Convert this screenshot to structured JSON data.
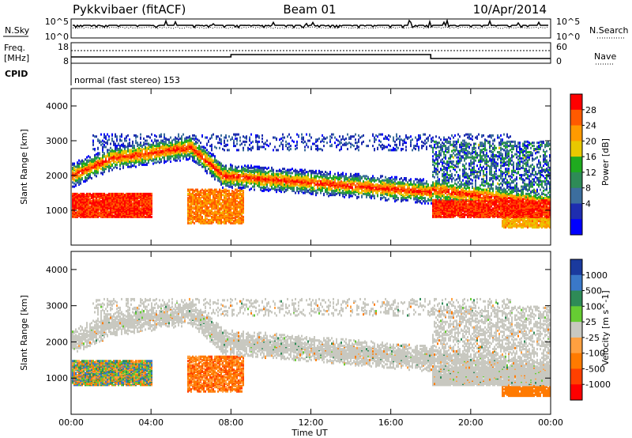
{
  "header": {
    "station": "Pykkvibaer (fitACF)",
    "beam": "Beam 01",
    "date": "10/Apr/2014"
  },
  "sky_panel": {
    "left_label": "N.Sky",
    "left_ticks": [
      "10^5",
      "10^0"
    ],
    "right_ticks": [
      "10^5",
      "10^0"
    ],
    "right_label": "N.Search"
  },
  "freq_panel": {
    "label_line1": "Freq.",
    "label_line2": "[MHz]",
    "left_ticks": [
      "18",
      "8"
    ],
    "right_ticks": [
      "60",
      "0"
    ],
    "right_label": "Nave",
    "cpid_label": "CPID",
    "cpid_text": "normal (fast stereo) 153"
  },
  "chart_data": [
    {
      "type": "heatmap",
      "name": "power",
      "ylabel": "Slant Range [km]",
      "ylim": [
        0,
        4500
      ],
      "yticks": [
        "1000",
        "2000",
        "3000",
        "4000"
      ],
      "xlim_hours": [
        0,
        24
      ],
      "colorbar": {
        "label": "Power [dB]",
        "ticks": [
          "28",
          "24",
          "20",
          "16",
          "12",
          "8",
          "4"
        ],
        "colors": [
          "#ff0000",
          "#ff5a00",
          "#ff9a00",
          "#e8c800",
          "#1faa1f",
          "#2e8b57",
          "#3c6e9e",
          "#1e2db0",
          "#0000ff"
        ]
      }
    },
    {
      "type": "heatmap",
      "name": "velocity",
      "ylabel": "Slant Range [km]",
      "ylim": [
        0,
        4500
      ],
      "yticks": [
        "1000",
        "2000",
        "3000",
        "4000"
      ],
      "xlim_hours": [
        0,
        24
      ],
      "colorbar": {
        "label": "Velocity [m s^-1]",
        "ticks": [
          "1000",
          "500",
          "100",
          "25",
          "-25",
          "-100",
          "-500",
          "-1000"
        ],
        "colors": [
          "#1a3a9e",
          "#3a78c8",
          "#2e8b57",
          "#66cc33",
          "#c8c8c0",
          "#ffa040",
          "#ff7a00",
          "#ff4000",
          "#ff0000"
        ]
      }
    }
  ],
  "xaxis": {
    "ticks": [
      "00:00",
      "04:00",
      "08:00",
      "12:00",
      "16:00",
      "20:00",
      "00:00"
    ],
    "label": "Time UT"
  }
}
